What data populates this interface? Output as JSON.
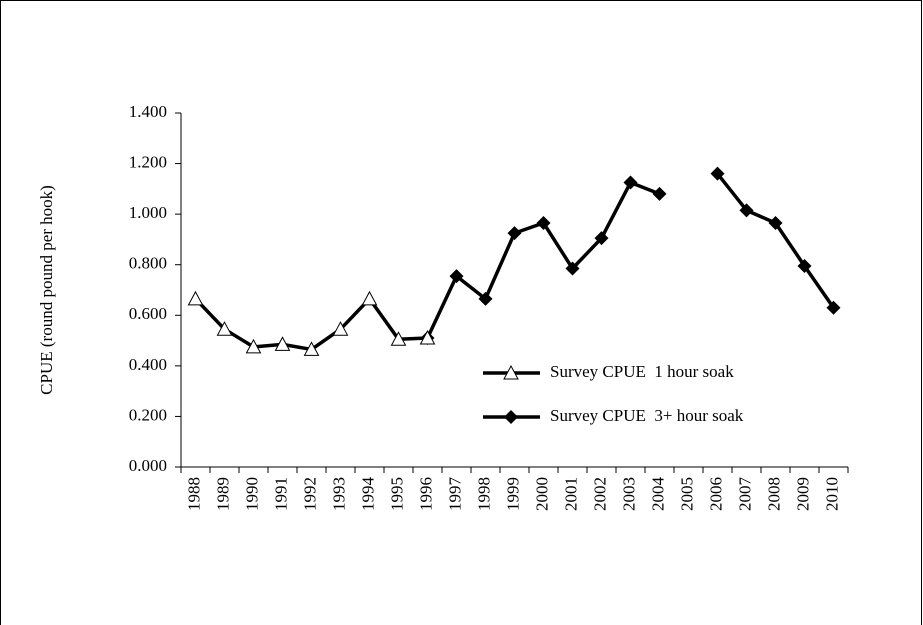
{
  "chart_data": {
    "type": "line",
    "y_label": "CPUE (round pound per hook)",
    "categories": [
      "1988",
      "1989",
      "1990",
      "1991",
      "1992",
      "1993",
      "1994",
      "1995",
      "1996",
      "1997",
      "1998",
      "1999",
      "2000",
      "2001",
      "2002",
      "2003",
      "2004",
      "2005",
      "2006",
      "2007",
      "2008",
      "2009",
      "2010"
    ],
    "series": [
      {
        "name": "Survey CPUE  1 hour soak",
        "color": "#000000",
        "marker": "triangle",
        "values": [
          0.665,
          0.545,
          0.475,
          0.485,
          0.465,
          0.545,
          0.665,
          0.505,
          0.51,
          null,
          null,
          null,
          null,
          null,
          null,
          null,
          null,
          null,
          null,
          null,
          null,
          null,
          null
        ]
      },
      {
        "name": "Survey CPUE  3+ hour soak",
        "color": "#000000",
        "marker": "diamond",
        "values": [
          null,
          null,
          null,
          null,
          null,
          null,
          null,
          null,
          0.51,
          0.755,
          0.665,
          0.925,
          0.965,
          0.785,
          0.905,
          1.125,
          1.08,
          null,
          1.16,
          1.015,
          0.965,
          0.795,
          0.63
        ]
      }
    ],
    "ylim": [
      0,
      1.4
    ],
    "yticks": [
      {
        "value": 0,
        "label": "0.000"
      },
      {
        "value": 0.2,
        "label": "0.200"
      },
      {
        "value": 0.4,
        "label": "0.400"
      },
      {
        "value": 0.6,
        "label": "0.600"
      },
      {
        "value": 0.8,
        "label": "0.800"
      },
      {
        "value": 1.0,
        "label": "1.000"
      },
      {
        "value": 1.2,
        "label": "1.200"
      },
      {
        "value": 1.4,
        "label": "1.400"
      }
    ]
  }
}
